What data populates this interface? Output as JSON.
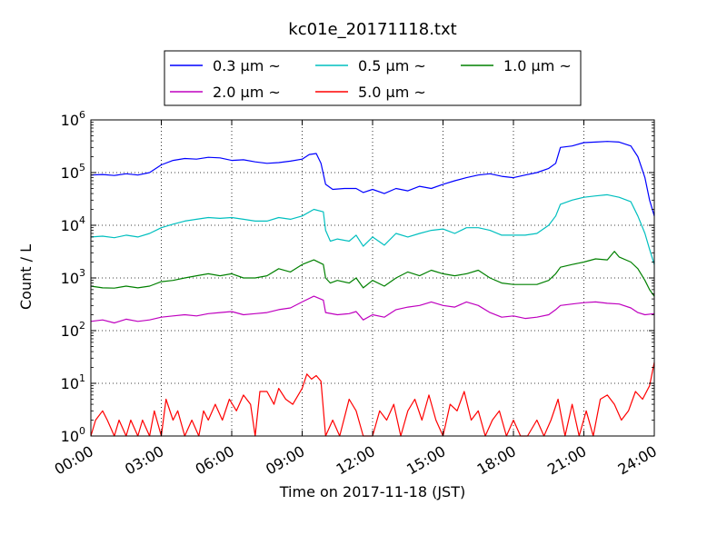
{
  "chart_data": {
    "type": "line",
    "title": "kc01e_20171118.txt",
    "xlabel": "Time on 2017-11-18 (JST)",
    "ylabel": "Count / L",
    "yscale": "log",
    "ylim": [
      1,
      1000000
    ],
    "xlim_hours": [
      0,
      24
    ],
    "x_ticks": [
      "00:00",
      "03:00",
      "06:00",
      "09:00",
      "12:00",
      "15:00",
      "18:00",
      "21:00",
      "24:00"
    ],
    "y_ticks": [
      {
        "base": "10",
        "exp": "0",
        "value": 1
      },
      {
        "base": "10",
        "exp": "1",
        "value": 10
      },
      {
        "base": "10",
        "exp": "2",
        "value": 100
      },
      {
        "base": "10",
        "exp": "3",
        "value": 1000
      },
      {
        "base": "10",
        "exp": "4",
        "value": 10000
      },
      {
        "base": "10",
        "exp": "5",
        "value": 100000
      },
      {
        "base": "10",
        "exp": "6",
        "value": 1000000
      }
    ],
    "grid": true,
    "legend_position": "above plot, centered",
    "series": [
      {
        "name": "0.3 μm ~",
        "color": "#0000ff",
        "points": [
          [
            0,
            90000
          ],
          [
            0.5,
            92000
          ],
          [
            1,
            88000
          ],
          [
            1.5,
            95000
          ],
          [
            2,
            90000
          ],
          [
            2.5,
            100000
          ],
          [
            3,
            140000
          ],
          [
            3.5,
            170000
          ],
          [
            4,
            185000
          ],
          [
            4.5,
            180000
          ],
          [
            5,
            195000
          ],
          [
            5.5,
            190000
          ],
          [
            6,
            170000
          ],
          [
            6.5,
            175000
          ],
          [
            7,
            160000
          ],
          [
            7.5,
            150000
          ],
          [
            8,
            155000
          ],
          [
            8.5,
            165000
          ],
          [
            9,
            180000
          ],
          [
            9.3,
            220000
          ],
          [
            9.6,
            230000
          ],
          [
            9.8,
            150000
          ],
          [
            10,
            60000
          ],
          [
            10.3,
            48000
          ],
          [
            10.8,
            50000
          ],
          [
            11.3,
            50000
          ],
          [
            11.6,
            42000
          ],
          [
            12,
            48000
          ],
          [
            12.5,
            40000
          ],
          [
            13,
            50000
          ],
          [
            13.5,
            45000
          ],
          [
            14,
            55000
          ],
          [
            14.5,
            50000
          ],
          [
            15,
            60000
          ],
          [
            15.5,
            70000
          ],
          [
            16,
            80000
          ],
          [
            16.5,
            90000
          ],
          [
            17,
            95000
          ],
          [
            17.5,
            85000
          ],
          [
            18,
            80000
          ],
          [
            18.5,
            90000
          ],
          [
            19,
            100000
          ],
          [
            19.5,
            120000
          ],
          [
            19.8,
            150000
          ],
          [
            20,
            300000
          ],
          [
            20.5,
            320000
          ],
          [
            21,
            370000
          ],
          [
            21.5,
            380000
          ],
          [
            22,
            390000
          ],
          [
            22.5,
            380000
          ],
          [
            23,
            320000
          ],
          [
            23.3,
            200000
          ],
          [
            23.6,
            80000
          ],
          [
            23.8,
            30000
          ],
          [
            24,
            15000
          ]
        ]
      },
      {
        "name": "0.5 μm ~",
        "color": "#00bfbf",
        "points": [
          [
            0,
            6000
          ],
          [
            0.5,
            6200
          ],
          [
            1,
            5800
          ],
          [
            1.5,
            6500
          ],
          [
            2,
            6000
          ],
          [
            2.5,
            7000
          ],
          [
            3,
            9000
          ],
          [
            3.5,
            10500
          ],
          [
            4,
            12000
          ],
          [
            4.5,
            13000
          ],
          [
            5,
            14000
          ],
          [
            5.5,
            13500
          ],
          [
            6,
            14000
          ],
          [
            6.5,
            13000
          ],
          [
            7,
            12000
          ],
          [
            7.5,
            12000
          ],
          [
            8,
            14000
          ],
          [
            8.5,
            13000
          ],
          [
            9,
            15000
          ],
          [
            9.5,
            20000
          ],
          [
            9.9,
            18000
          ],
          [
            10,
            8000
          ],
          [
            10.2,
            5000
          ],
          [
            10.5,
            5500
          ],
          [
            11,
            5000
          ],
          [
            11.3,
            6500
          ],
          [
            11.6,
            4000
          ],
          [
            12,
            6000
          ],
          [
            12.5,
            4200
          ],
          [
            13,
            7000
          ],
          [
            13.5,
            6000
          ],
          [
            14,
            7000
          ],
          [
            14.5,
            8000
          ],
          [
            15,
            8500
          ],
          [
            15.5,
            7000
          ],
          [
            16,
            9000
          ],
          [
            16.5,
            9000
          ],
          [
            17,
            8000
          ],
          [
            17.5,
            6500
          ],
          [
            18,
            6500
          ],
          [
            18.5,
            6500
          ],
          [
            19,
            7000
          ],
          [
            19.5,
            10000
          ],
          [
            19.8,
            15000
          ],
          [
            20,
            25000
          ],
          [
            20.5,
            30000
          ],
          [
            21,
            34000
          ],
          [
            21.5,
            36000
          ],
          [
            22,
            38000
          ],
          [
            22.5,
            34000
          ],
          [
            23,
            28000
          ],
          [
            23.3,
            15000
          ],
          [
            23.6,
            7000
          ],
          [
            23.8,
            3500
          ],
          [
            24,
            1800
          ]
        ]
      },
      {
        "name": "1.0 μm ~",
        "color": "#008000",
        "points": [
          [
            0,
            700
          ],
          [
            0.5,
            650
          ],
          [
            1,
            640
          ],
          [
            1.5,
            700
          ],
          [
            2,
            650
          ],
          [
            2.5,
            700
          ],
          [
            3,
            850
          ],
          [
            3.5,
            900
          ],
          [
            4,
            1000
          ],
          [
            4.5,
            1100
          ],
          [
            5,
            1200
          ],
          [
            5.5,
            1100
          ],
          [
            6,
            1200
          ],
          [
            6.5,
            1000
          ],
          [
            7,
            1000
          ],
          [
            7.5,
            1100
          ],
          [
            8,
            1500
          ],
          [
            8.5,
            1300
          ],
          [
            9,
            1800
          ],
          [
            9.5,
            2200
          ],
          [
            9.9,
            1800
          ],
          [
            10,
            1000
          ],
          [
            10.2,
            800
          ],
          [
            10.5,
            900
          ],
          [
            11,
            800
          ],
          [
            11.3,
            1000
          ],
          [
            11.6,
            650
          ],
          [
            12,
            900
          ],
          [
            12.5,
            700
          ],
          [
            13,
            1000
          ],
          [
            13.5,
            1300
          ],
          [
            14,
            1100
          ],
          [
            14.5,
            1400
          ],
          [
            15,
            1200
          ],
          [
            15.5,
            1100
          ],
          [
            16,
            1200
          ],
          [
            16.5,
            1400
          ],
          [
            17,
            1000
          ],
          [
            17.5,
            800
          ],
          [
            18,
            750
          ],
          [
            18.5,
            750
          ],
          [
            19,
            750
          ],
          [
            19.5,
            900
          ],
          [
            19.8,
            1200
          ],
          [
            20,
            1600
          ],
          [
            20.5,
            1800
          ],
          [
            21,
            2000
          ],
          [
            21.5,
            2300
          ],
          [
            22,
            2200
          ],
          [
            22.3,
            3200
          ],
          [
            22.5,
            2500
          ],
          [
            23,
            2000
          ],
          [
            23.3,
            1500
          ],
          [
            23.6,
            900
          ],
          [
            23.8,
            600
          ],
          [
            24,
            450
          ]
        ]
      },
      {
        "name": "2.0 μm ~",
        "color": "#bf00bf",
        "points": [
          [
            0,
            150
          ],
          [
            0.5,
            160
          ],
          [
            1,
            140
          ],
          [
            1.5,
            165
          ],
          [
            2,
            150
          ],
          [
            2.5,
            160
          ],
          [
            3,
            180
          ],
          [
            3.5,
            190
          ],
          [
            4,
            200
          ],
          [
            4.5,
            190
          ],
          [
            5,
            210
          ],
          [
            5.5,
            220
          ],
          [
            6,
            230
          ],
          [
            6.5,
            200
          ],
          [
            7,
            210
          ],
          [
            7.5,
            220
          ],
          [
            8,
            250
          ],
          [
            8.5,
            270
          ],
          [
            9,
            350
          ],
          [
            9.5,
            450
          ],
          [
            9.9,
            380
          ],
          [
            10,
            220
          ],
          [
            10.5,
            200
          ],
          [
            11,
            210
          ],
          [
            11.3,
            230
          ],
          [
            11.6,
            160
          ],
          [
            12,
            200
          ],
          [
            12.5,
            180
          ],
          [
            13,
            250
          ],
          [
            13.5,
            280
          ],
          [
            14,
            300
          ],
          [
            14.5,
            350
          ],
          [
            15,
            300
          ],
          [
            15.5,
            280
          ],
          [
            16,
            350
          ],
          [
            16.5,
            300
          ],
          [
            17,
            220
          ],
          [
            17.5,
            180
          ],
          [
            18,
            190
          ],
          [
            18.5,
            170
          ],
          [
            19,
            180
          ],
          [
            19.5,
            200
          ],
          [
            19.8,
            250
          ],
          [
            20,
            300
          ],
          [
            20.5,
            320
          ],
          [
            21,
            340
          ],
          [
            21.5,
            350
          ],
          [
            22,
            330
          ],
          [
            22.5,
            320
          ],
          [
            23,
            270
          ],
          [
            23.3,
            220
          ],
          [
            23.6,
            200
          ],
          [
            24,
            210
          ]
        ]
      },
      {
        "name": "5.0 μm ~",
        "color": "#ff0000",
        "points": [
          [
            0,
            1
          ],
          [
            0.2,
            2
          ],
          [
            0.5,
            3
          ],
          [
            0.7,
            2
          ],
          [
            1,
            1
          ],
          [
            1.2,
            2
          ],
          [
            1.5,
            1
          ],
          [
            1.7,
            2
          ],
          [
            2,
            1
          ],
          [
            2.2,
            2
          ],
          [
            2.5,
            1
          ],
          [
            2.7,
            3
          ],
          [
            3,
            1
          ],
          [
            3.2,
            5
          ],
          [
            3.5,
            2
          ],
          [
            3.7,
            3
          ],
          [
            4,
            1
          ],
          [
            4.3,
            2
          ],
          [
            4.6,
            1
          ],
          [
            4.8,
            3
          ],
          [
            5,
            2
          ],
          [
            5.3,
            4
          ],
          [
            5.6,
            2
          ],
          [
            5.9,
            5
          ],
          [
            6.2,
            3
          ],
          [
            6.5,
            6
          ],
          [
            6.8,
            4
          ],
          [
            7,
            1
          ],
          [
            7.2,
            7
          ],
          [
            7.5,
            7
          ],
          [
            7.8,
            4
          ],
          [
            8,
            8
          ],
          [
            8.3,
            5
          ],
          [
            8.6,
            4
          ],
          [
            9,
            8
          ],
          [
            9.2,
            15
          ],
          [
            9.4,
            12
          ],
          [
            9.6,
            14
          ],
          [
            9.8,
            11
          ],
          [
            10,
            1
          ],
          [
            10.3,
            2
          ],
          [
            10.6,
            1
          ],
          [
            11,
            5
          ],
          [
            11.3,
            3
          ],
          [
            11.6,
            1
          ],
          [
            12,
            1
          ],
          [
            12.3,
            3
          ],
          [
            12.6,
            2
          ],
          [
            12.9,
            4
          ],
          [
            13.2,
            1
          ],
          [
            13.5,
            3
          ],
          [
            13.8,
            5
          ],
          [
            14.1,
            2
          ],
          [
            14.4,
            6
          ],
          [
            14.7,
            2
          ],
          [
            15,
            1
          ],
          [
            15.3,
            4
          ],
          [
            15.6,
            3
          ],
          [
            15.9,
            7
          ],
          [
            16.2,
            2
          ],
          [
            16.5,
            3
          ],
          [
            16.8,
            1
          ],
          [
            17.1,
            2
          ],
          [
            17.4,
            3
          ],
          [
            17.7,
            1
          ],
          [
            18,
            2
          ],
          [
            18.3,
            1
          ],
          [
            18.6,
            1
          ],
          [
            19,
            2
          ],
          [
            19.3,
            1
          ],
          [
            19.6,
            2
          ],
          [
            19.9,
            5
          ],
          [
            20.2,
            1
          ],
          [
            20.5,
            4
          ],
          [
            20.8,
            1
          ],
          [
            21.1,
            3
          ],
          [
            21.4,
            1
          ],
          [
            21.7,
            5
          ],
          [
            22,
            6
          ],
          [
            22.3,
            4
          ],
          [
            22.6,
            2
          ],
          [
            22.9,
            3
          ],
          [
            23.2,
            7
          ],
          [
            23.5,
            5
          ],
          [
            23.8,
            9
          ],
          [
            24,
            25
          ]
        ]
      }
    ]
  }
}
